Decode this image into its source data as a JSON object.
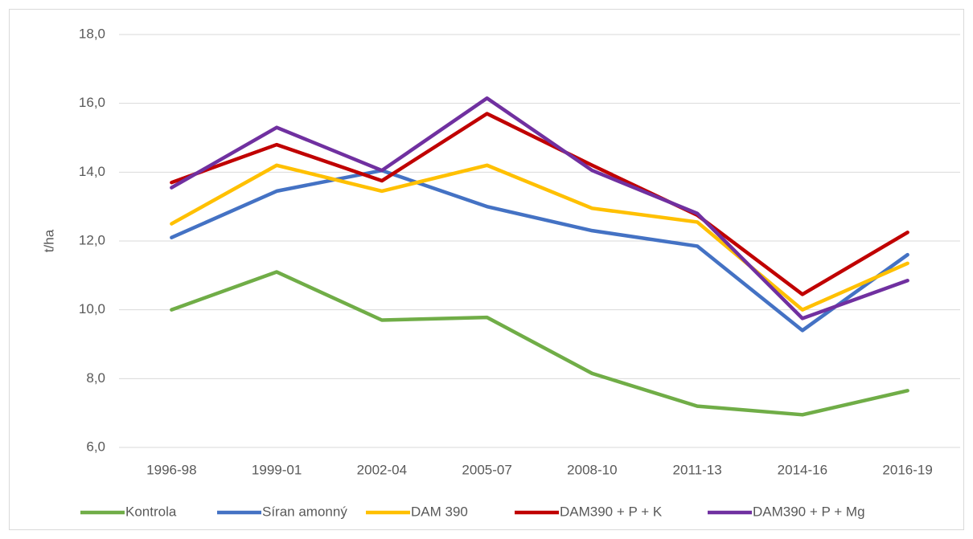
{
  "chart_data": {
    "type": "line",
    "y_label": "t/ha",
    "categories": [
      "1996-98",
      "1999-01",
      "2002-04",
      "2005-07",
      "2008-10",
      "2011-13",
      "2014-16",
      "2016-19"
    ],
    "series": [
      {
        "name": "Kontrola",
        "color": "#70ad47",
        "values": [
          10.0,
          11.1,
          9.7,
          9.78,
          8.15,
          7.2,
          6.95,
          7.65
        ]
      },
      {
        "name": "Síran amonný",
        "color": "#4472c4",
        "values": [
          12.1,
          13.45,
          14.05,
          13.0,
          12.3,
          11.85,
          9.4,
          11.6
        ]
      },
      {
        "name": "DAM 390",
        "color": "#ffc000",
        "values": [
          12.5,
          14.2,
          13.45,
          14.2,
          12.95,
          12.55,
          10.0,
          11.35
        ]
      },
      {
        "name": "DAM390 + P + K",
        "color": "#c00000",
        "values": [
          13.7,
          14.8,
          13.75,
          15.7,
          14.2,
          12.75,
          10.45,
          12.25
        ]
      },
      {
        "name": "DAM390 + P + Mg",
        "color": "#7030a0",
        "values": [
          13.55,
          15.3,
          14.05,
          16.15,
          14.05,
          12.8,
          9.75,
          10.85
        ]
      }
    ],
    "ylim": [
      6,
      18
    ],
    "yticks": [
      {
        "value": 6,
        "label": "6,0"
      },
      {
        "value": 8,
        "label": "8,0"
      },
      {
        "value": 10,
        "label": "10,0"
      },
      {
        "value": 12,
        "label": "12,0"
      },
      {
        "value": 14,
        "label": "14,0"
      },
      {
        "value": 16,
        "label": "16,0"
      },
      {
        "value": 18,
        "label": "18,0"
      }
    ],
    "grid": true,
    "legend": "bottom"
  }
}
